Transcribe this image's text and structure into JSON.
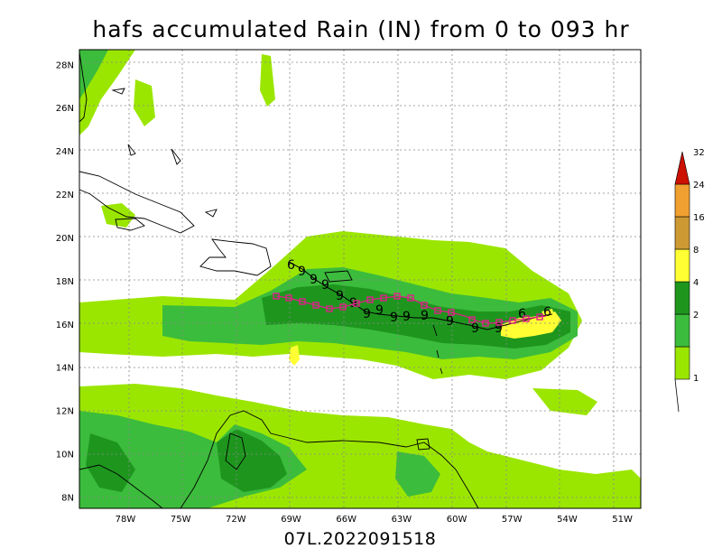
{
  "title": "hafs accumulated Rain (IN) from 0 to 093 hr",
  "subtitle": "07L.2022091518",
  "map": {
    "lon_range": [
      -80.5,
      -50.0
    ],
    "lat_range": [
      7.5,
      28.7
    ],
    "lon_ticks": [
      {
        "value": -78,
        "label": "78W"
      },
      {
        "value": -75,
        "label": "75W"
      },
      {
        "value": -72,
        "label": "72W"
      },
      {
        "value": -69,
        "label": "69W"
      },
      {
        "value": -66,
        "label": "66W"
      },
      {
        "value": -63,
        "label": "63W"
      },
      {
        "value": -60,
        "label": "60W"
      },
      {
        "value": -57,
        "label": "57W"
      },
      {
        "value": -54,
        "label": "54W"
      },
      {
        "value": -51,
        "label": "51W"
      }
    ],
    "lat_ticks": [
      {
        "value": 8,
        "label": "8N"
      },
      {
        "value": 10,
        "label": "10N"
      },
      {
        "value": 12,
        "label": "12N"
      },
      {
        "value": 14,
        "label": "14N"
      },
      {
        "value": 16,
        "label": "16N"
      },
      {
        "value": 18,
        "label": "18N"
      },
      {
        "value": 20,
        "label": "20N"
      },
      {
        "value": 22,
        "label": "22N"
      },
      {
        "value": 24,
        "label": "24N"
      },
      {
        "value": 26,
        "label": "26N"
      },
      {
        "value": 28,
        "label": "28N"
      }
    ],
    "grid": true
  },
  "colorbar": {
    "levels": [
      {
        "label": "1",
        "color": "#9be600"
      },
      {
        "label": "2",
        "color": "#3cbc3c"
      },
      {
        "label": "4",
        "color": "#1e961e"
      },
      {
        "label": "8",
        "color": "#ffff33"
      },
      {
        "label": "16",
        "color": "#cc9933"
      },
      {
        "label": "24",
        "color": "#f0a030"
      },
      {
        "label": "32",
        "color": "#cc1100"
      }
    ]
  },
  "tracks": {
    "forecast_color": "#000000",
    "best_track_color": "#e0208a",
    "symbol": "tropical-cyclone-symbol"
  }
}
